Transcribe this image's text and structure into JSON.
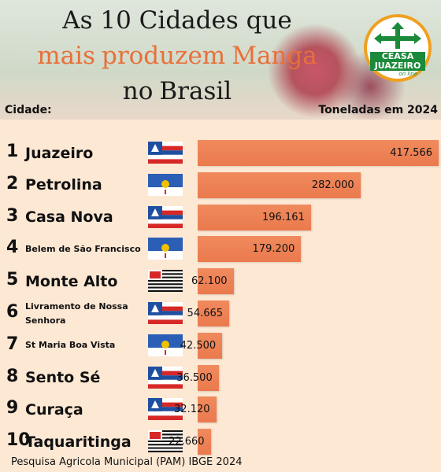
{
  "chart_data": {
    "type": "hbar",
    "title": [
      "As 10 Cidades que",
      "mais",
      "produzem",
      "Manga",
      "no",
      "Brasil"
    ],
    "title_colors": [
      "#1a1a1a",
      "#e8703a",
      "#e8703a",
      "#e8703a",
      "#1a1a1a",
      "#1a1a1a"
    ],
    "category_header": "Cidade:",
    "value_header": "Toneladas em 2024",
    "ranks": [
      1,
      2,
      3,
      4,
      5,
      6,
      7,
      8,
      9,
      10
    ],
    "categories": [
      "Juazeiro",
      "Petrolina",
      "Casa Nova",
      "Belem de São Francisco",
      "Monte Alto",
      "Livramento de Nossa Senhora",
      "St Maria Boa Vista",
      "Sento Sé",
      "Curaça",
      "Taquaritinga"
    ],
    "values": [
      417566,
      282000,
      196161,
      179200,
      62100,
      54665,
      42500,
      36500,
      32120,
      22660
    ],
    "value_labels": [
      "417.566",
      "282.000",
      "196.161",
      "179.200",
      "62.100",
      "54.665",
      "42.500",
      "36.500",
      "32.120",
      "22.660"
    ],
    "color": "#f08a5d",
    "source": "Pesquisa Agricola Municipal (PAM) IBGE 2024",
    "logo": {
      "line1": "CEASA",
      "line2": "JUAZEIRO",
      "line3": "on line"
    }
  }
}
